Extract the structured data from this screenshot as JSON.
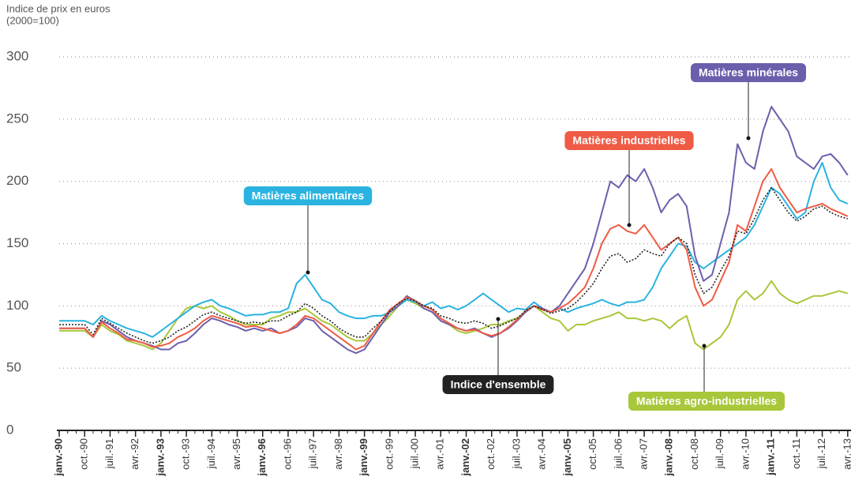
{
  "chart_data": {
    "type": "line",
    "ylabel_lines": [
      "Indice de prix en euros",
      "(2000=100)"
    ],
    "categories": [
      "janv.-90",
      null,
      null,
      "oct.-90",
      null,
      null,
      "juil.-91",
      null,
      null,
      "avr.-92",
      null,
      null,
      "janv.-93",
      null,
      null,
      "oct.-93",
      null,
      null,
      "juil.-94",
      null,
      null,
      "avr.-95",
      null,
      null,
      "janv.-96",
      null,
      null,
      "oct.-96",
      null,
      null,
      "juil.-97",
      null,
      null,
      "avr.-98",
      null,
      null,
      "janv.-99",
      null,
      null,
      "oct.-99",
      null,
      null,
      "juil.-00",
      null,
      null,
      "avr.-01",
      null,
      null,
      "janv.-02",
      null,
      null,
      "oct.-02",
      null,
      null,
      "juil.-03",
      null,
      null,
      "avr.-04",
      null,
      null,
      "janv.-05",
      null,
      null,
      "oct.-05",
      null,
      null,
      "juil.-06",
      null,
      null,
      "avr.-07",
      null,
      null,
      "janv.-08",
      null,
      null,
      "oct.-08",
      null,
      null,
      "juil.-09",
      null,
      null,
      "avr.-10",
      null,
      null,
      "janv.-11",
      null,
      null,
      "oct.-11",
      null,
      null,
      "juil.-12",
      null,
      null,
      "avr.-13"
    ],
    "ylim": [
      0,
      300
    ],
    "yticks": [
      0,
      50,
      100,
      150,
      200,
      250,
      300
    ],
    "grid": true,
    "series": [
      {
        "name": "Matières agro-industrielles",
        "color": "#a8c73a",
        "values": [
          80,
          80,
          80,
          80,
          75,
          85,
          80,
          77,
          72,
          70,
          68,
          65,
          70,
          80,
          90,
          98,
          100,
          98,
          100,
          95,
          92,
          88,
          85,
          85,
          85,
          90,
          92,
          95,
          95,
          98,
          93,
          88,
          85,
          80,
          75,
          72,
          72,
          78,
          85,
          92,
          100,
          105,
          102,
          98,
          95,
          88,
          85,
          80,
          78,
          80,
          82,
          85,
          85,
          88,
          90,
          95,
          100,
          95,
          90,
          88,
          80,
          85,
          85,
          88,
          90,
          92,
          95,
          90,
          90,
          88,
          90,
          88,
          82,
          88,
          92,
          70,
          65,
          70,
          75,
          85,
          105,
          112,
          105,
          110,
          120,
          110,
          105,
          102,
          105,
          108,
          108,
          110,
          112,
          110
        ]
      },
      {
        "name": "Matières alimentaires",
        "color": "#2ab3e0",
        "values": [
          88,
          88,
          88,
          88,
          85,
          92,
          88,
          85,
          82,
          80,
          78,
          75,
          80,
          85,
          90,
          95,
          100,
          103,
          105,
          100,
          98,
          95,
          92,
          93,
          93,
          95,
          95,
          98,
          118,
          125,
          115,
          105,
          102,
          95,
          92,
          90,
          90,
          92,
          92,
          95,
          100,
          105,
          103,
          100,
          103,
          98,
          100,
          97,
          100,
          105,
          110,
          105,
          100,
          95,
          98,
          97,
          103,
          98,
          95,
          98,
          95,
          98,
          100,
          102,
          105,
          102,
          100,
          103,
          103,
          105,
          115,
          130,
          140,
          150,
          148,
          135,
          130,
          135,
          140,
          145,
          150,
          155,
          165,
          180,
          195,
          190,
          180,
          170,
          175,
          200,
          215,
          195,
          185,
          182
        ]
      },
      {
        "name": "Matières minérales",
        "color": "#6b5fad",
        "values": [
          82,
          82,
          82,
          82,
          75,
          88,
          85,
          80,
          75,
          72,
          70,
          68,
          65,
          65,
          70,
          72,
          78,
          85,
          90,
          88,
          85,
          83,
          80,
          82,
          80,
          82,
          78,
          80,
          83,
          90,
          88,
          80,
          75,
          70,
          65,
          62,
          65,
          75,
          85,
          95,
          100,
          108,
          104,
          98,
          95,
          88,
          85,
          82,
          80,
          82,
          78,
          75,
          78,
          82,
          88,
          95,
          100,
          98,
          95,
          100,
          110,
          120,
          130,
          150,
          175,
          200,
          195,
          205,
          200,
          210,
          195,
          175,
          185,
          190,
          180,
          140,
          120,
          125,
          150,
          175,
          230,
          215,
          210,
          240,
          260,
          250,
          240,
          220,
          215,
          210,
          220,
          222,
          215,
          205
        ]
      },
      {
        "name": "Matières industrielles",
        "color": "#ef5b45",
        "values": [
          82,
          82,
          82,
          82,
          75,
          87,
          82,
          78,
          73,
          72,
          70,
          67,
          68,
          70,
          75,
          78,
          82,
          88,
          92,
          90,
          88,
          86,
          83,
          84,
          82,
          80,
          78,
          80,
          85,
          92,
          90,
          85,
          80,
          75,
          70,
          65,
          68,
          78,
          88,
          97,
          102,
          107,
          104,
          100,
          97,
          90,
          86,
          82,
          80,
          81,
          78,
          76,
          78,
          83,
          89,
          96,
          100,
          97,
          95,
          98,
          102,
          108,
          115,
          130,
          150,
          162,
          165,
          160,
          158,
          165,
          155,
          145,
          150,
          155,
          145,
          115,
          100,
          105,
          120,
          135,
          165,
          160,
          180,
          200,
          210,
          195,
          185,
          175,
          178,
          180,
          182,
          178,
          175,
          172
        ]
      },
      {
        "name": "Indice d'ensemble",
        "color": "#222222",
        "values": [
          85,
          85,
          85,
          85,
          77,
          90,
          86,
          82,
          78,
          75,
          72,
          70,
          72,
          75,
          80,
          83,
          88,
          93,
          95,
          92,
          90,
          88,
          86,
          87,
          86,
          88,
          88,
          92,
          95,
          102,
          98,
          92,
          88,
          82,
          78,
          75,
          75,
          82,
          88,
          96,
          102,
          106,
          104,
          100,
          98,
          92,
          90,
          87,
          86,
          88,
          86,
          82,
          84,
          87,
          90,
          96,
          100,
          97,
          94,
          96,
          98,
          103,
          110,
          118,
          130,
          140,
          142,
          135,
          138,
          145,
          142,
          140,
          150,
          155,
          150,
          125,
          110,
          115,
          128,
          140,
          160,
          158,
          170,
          185,
          195,
          185,
          175,
          168,
          172,
          178,
          180,
          175,
          172,
          170
        ]
      }
    ]
  }
}
